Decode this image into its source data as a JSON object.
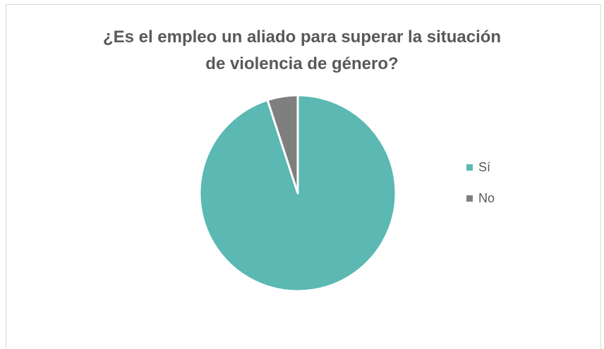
{
  "chart_data": {
    "type": "pie",
    "title_line1": "¿Es el empleo un aliado para superar la situación",
    "title_line2": "de violencia de género?",
    "categories": [
      "Sí",
      "No"
    ],
    "values": [
      95,
      5
    ],
    "colors": [
      "#5bb8b2",
      "#7f7f7f"
    ],
    "legend_position": "right"
  }
}
